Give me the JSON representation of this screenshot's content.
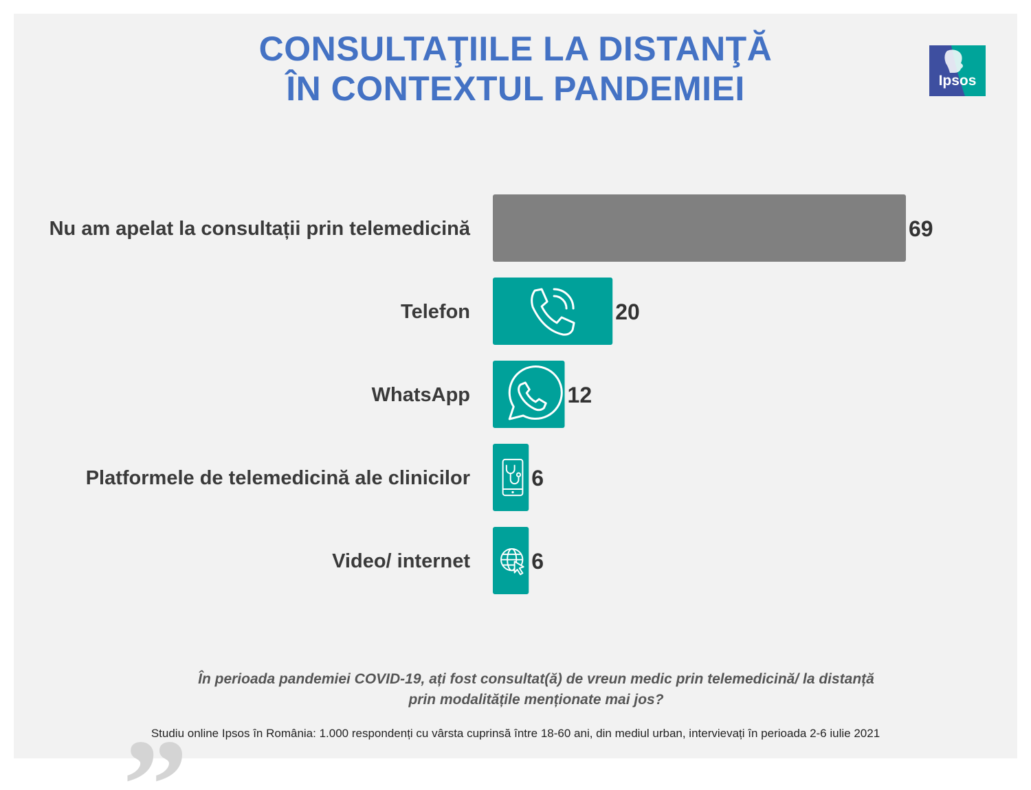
{
  "title_lines": [
    "CONSULTAŢIILE LA DISTANŢĂ",
    "ÎN CONTEXTUL PANDEMIEI"
  ],
  "logo": {
    "text": "Ipsos",
    "colors": {
      "left": "#3e4fa0",
      "right": "#00a49a"
    }
  },
  "colors": {
    "title": "#4472c4",
    "bar_gray": "#808080",
    "bar_teal": "#00a19a"
  },
  "chart_data": {
    "type": "bar",
    "orientation": "horizontal",
    "title": "",
    "xlabel": "",
    "ylabel": "",
    "xlim": [
      0,
      69
    ],
    "grid": false,
    "categories": [
      "Nu am apelat la consultații prin telemedicină",
      "Telefon",
      "WhatsApp",
      "Platformele de telemedicină ale clinicilor",
      "Video/ internet"
    ],
    "values": [
      69,
      20,
      12,
      6,
      6
    ],
    "bar_colors": [
      "#808080",
      "#00a19a",
      "#00a19a",
      "#00a19a",
      "#00a19a"
    ],
    "bar_icons": [
      "",
      "phone-icon",
      "whatsapp-icon",
      "stethoscope-phone-icon",
      "globe-cursor-icon"
    ]
  },
  "question_lines": [
    "În perioada pandemiei COVID-19, ați fost consultat(ă) de vreun medic prin telemedicină/ la distanță",
    "prin modalitățile menționate mai jos?"
  ],
  "footnote": "Studiu online Ipsos în România: 1.000 respondenți cu vârsta cuprinsă între 18-60 ani, din mediul urban, intervievați în perioada 2-6 iulie 2021"
}
